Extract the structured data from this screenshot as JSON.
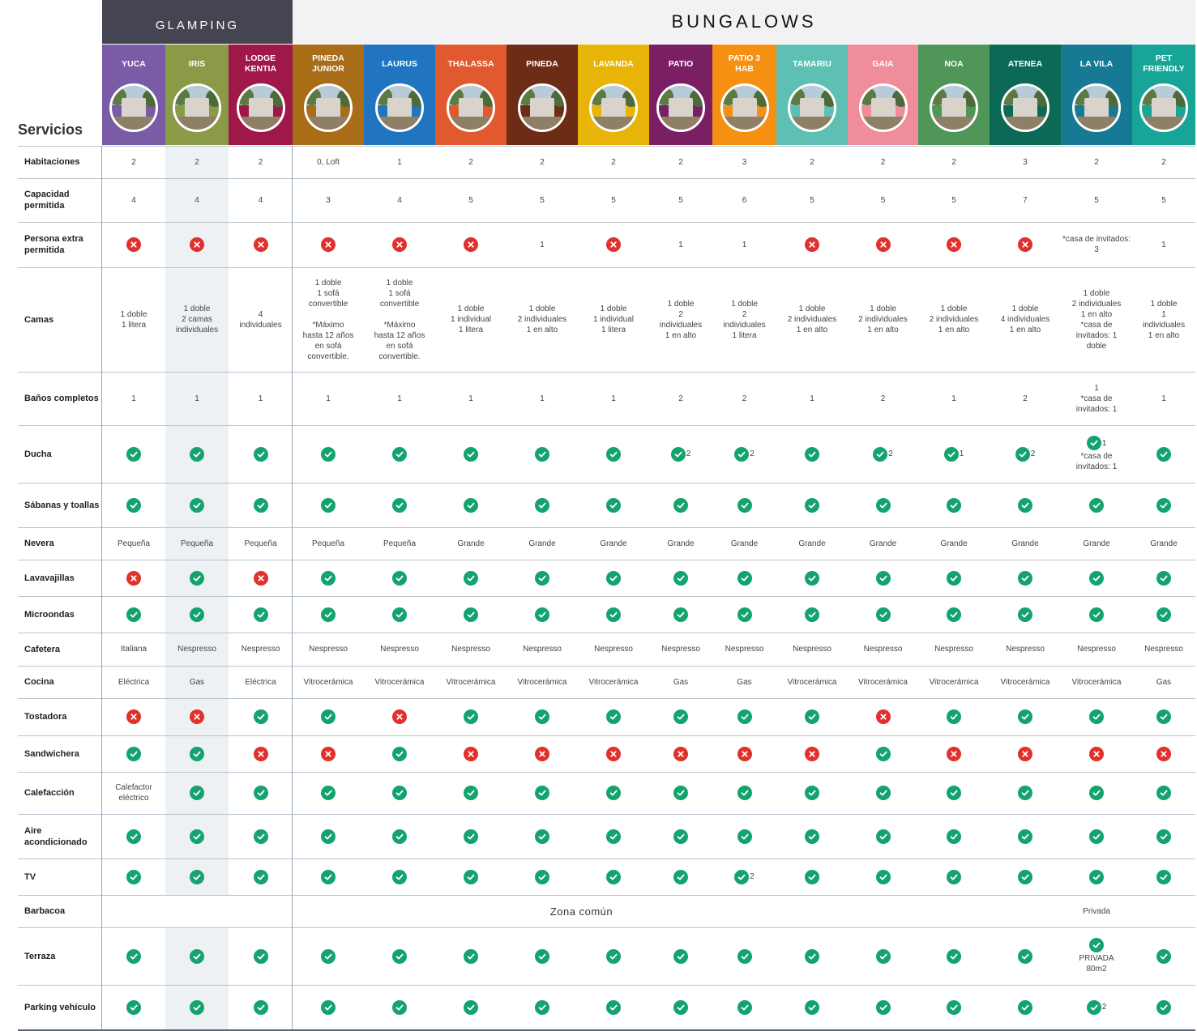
{
  "groups": {
    "glamping": "GLAMPING",
    "bungalows": "BUNGALOWS"
  },
  "servicios_title": "Servicios",
  "columns": [
    {
      "id": "yuca",
      "name": "YUCA",
      "color": "#7a5ba5"
    },
    {
      "id": "iris",
      "name": "IRIS",
      "color": "#8a9a46"
    },
    {
      "id": "lodge-kentia",
      "name": "LODGE KENTIA",
      "color": "#a0174a"
    },
    {
      "id": "pineda-junior",
      "name": "PINEDA JUNIOR",
      "color": "#a86d16"
    },
    {
      "id": "laurus",
      "name": "LAURUS",
      "color": "#2175c0"
    },
    {
      "id": "thalassa",
      "name": "THALASSA",
      "color": "#e1592e"
    },
    {
      "id": "pineda",
      "name": "PINEDA",
      "color": "#6c2c16"
    },
    {
      "id": "lavanda",
      "name": "LAVANDA",
      "color": "#e8b408"
    },
    {
      "id": "patio",
      "name": "PATIO",
      "color": "#7b1f65"
    },
    {
      "id": "patio-3-hab",
      "name": "PATIO 3 HAB",
      "color": "#f59012"
    },
    {
      "id": "tamariu",
      "name": "TAMARIU",
      "color": "#5ec0b4"
    },
    {
      "id": "gaia",
      "name": "GAIA",
      "color": "#f08d9a"
    },
    {
      "id": "noa",
      "name": "NOA",
      "color": "#4f9658"
    },
    {
      "id": "atenea",
      "name": "ATENEA",
      "color": "#0b6956"
    },
    {
      "id": "la-vila",
      "name": "LA VILA",
      "color": "#177a94"
    },
    {
      "id": "pet-friendly",
      "name": "PET FRIENDLY",
      "color": "#16a596"
    }
  ],
  "rows": [
    {
      "id": "habitaciones",
      "label": "Habitaciones",
      "cells": [
        "2",
        "2",
        "2",
        "0, Loft",
        "1",
        "2",
        "2",
        "2",
        "2",
        "3",
        "2",
        "2",
        "2",
        "3",
        "2",
        "2"
      ]
    },
    {
      "id": "capacidad",
      "label": "Capacidad permitida",
      "cells": [
        "4",
        "4",
        "4",
        "3",
        "4",
        "5",
        "5",
        "5",
        "5",
        "6",
        "5",
        "5",
        "5",
        "7",
        "5",
        "5"
      ]
    },
    {
      "id": "persona-extra",
      "label": "Persona extra permitida",
      "cells": [
        "no",
        "no",
        "no",
        "no",
        "no",
        "no",
        "1",
        "no",
        "1",
        "1",
        "no",
        "no",
        "no",
        "no",
        "*casa de invitados: 3",
        "1"
      ]
    },
    {
      "id": "camas",
      "label": "Camas",
      "cells": [
        "1 doble\n1 litera",
        "1 doble\n2 camas\nindividuales",
        "4\nindividuales",
        "1 doble\n1 sofá\nconvertible\n\n*Máximo\nhasta 12 años\nen sofá\nconvertible.",
        "1 doble\n1 sofá\nconvertible\n\n*Máximo\nhasta 12 años\nen sofá\nconvertible.",
        "1 doble\n1 individual\n1 litera",
        "1 doble\n2 individuales\n1 en alto",
        "1 doble\n1 individual\n1 litera",
        "1 doble\n2\nindividuales\n1 en alto",
        "1 doble\n2\nindividuales\n1 litera",
        "1 doble\n2 individuales\n1 en alto",
        "1 doble\n2 individuales\n1 en alto",
        "1 doble\n2 individuales\n1 en alto",
        "1 doble\n4 individuales\n1 en alto",
        "1 doble\n2 individuales\n1 en alto\n*casa de\ninvitados: 1\ndoble",
        "1 doble\n1\nindividuales\n1 en alto"
      ]
    },
    {
      "id": "banos",
      "label": "Baños completos",
      "cells": [
        "1",
        "1",
        "1",
        "1",
        "1",
        "1",
        "1",
        "1",
        "2",
        "2",
        "1",
        "2",
        "1",
        "2",
        "1\n*casa de\ninvitados: 1",
        "1"
      ]
    },
    {
      "id": "ducha",
      "label": "Ducha",
      "cells": [
        "yes",
        "yes",
        "yes",
        "yes",
        "yes",
        "yes",
        "yes",
        "yes",
        "yes|2",
        "yes|2",
        "yes",
        "yes|2",
        "yes|1",
        "yes|2",
        "yes|1|*casa de\ninvitados: 1",
        "yes"
      ]
    },
    {
      "id": "sabanas",
      "label": "Sábanas y toallas",
      "cells": [
        "yes",
        "yes",
        "yes",
        "yes",
        "yes",
        "yes",
        "yes",
        "yes",
        "yes",
        "yes",
        "yes",
        "yes",
        "yes",
        "yes",
        "yes",
        "yes"
      ]
    },
    {
      "id": "nevera",
      "label": "Nevera",
      "cells": [
        "Pequeña",
        "Pequeña",
        "Pequeña",
        "Pequeña",
        "Pequeña",
        "Grande",
        "Grande",
        "Grande",
        "Grande",
        "Grande",
        "Grande",
        "Grande",
        "Grande",
        "Grande",
        "Grande",
        "Grande"
      ]
    },
    {
      "id": "lavavajillas",
      "label": "Lavavajillas",
      "cells": [
        "no",
        "yes",
        "no",
        "yes",
        "yes",
        "yes",
        "yes",
        "yes",
        "yes",
        "yes",
        "yes",
        "yes",
        "yes",
        "yes",
        "yes",
        "yes"
      ]
    },
    {
      "id": "microondas",
      "label": "Microondas",
      "cells": [
        "yes",
        "yes",
        "yes",
        "yes",
        "yes",
        "yes",
        "yes",
        "yes",
        "yes",
        "yes",
        "yes",
        "yes",
        "yes",
        "yes",
        "yes",
        "yes"
      ]
    },
    {
      "id": "cafetera",
      "label": "Cafetera",
      "cells": [
        "Italiana",
        "Nespresso",
        "Nespresso",
        "Nespresso",
        "Nespresso",
        "Nespresso",
        "Nespresso",
        "Nespresso",
        "Nespresso",
        "Nespresso",
        "Nespresso",
        "Nespresso",
        "Nespresso",
        "Nespresso",
        "Nespresso",
        "Nespresso"
      ]
    },
    {
      "id": "cocina",
      "label": "Cocina",
      "cells": [
        "Eléctrica",
        "Gas",
        "Eléctrica",
        "Vitrocerámica",
        "Vitrocerámica",
        "Vitrocerámica",
        "Vitrocerámica",
        "Vitrocerámica",
        "Gas",
        "Gas",
        "Vitrocerámica",
        "Vitrocerámica",
        "Vitrocerámica",
        "Vitrocerámica",
        "Vitrocerámica",
        "Gas"
      ]
    },
    {
      "id": "tostadora",
      "label": "Tostadora",
      "cells": [
        "no",
        "no",
        "yes",
        "yes",
        "no",
        "yes",
        "yes",
        "yes",
        "yes",
        "yes",
        "yes",
        "no",
        "yes",
        "yes",
        "yes",
        "yes"
      ]
    },
    {
      "id": "sandwichera",
      "label": "Sandwichera",
      "cells": [
        "yes",
        "yes",
        "no",
        "no",
        "yes",
        "no",
        "no",
        "no",
        "no",
        "no",
        "no",
        "yes",
        "no",
        "no",
        "no",
        "no"
      ]
    },
    {
      "id": "calefaccion",
      "label": "Calefacción",
      "cells": [
        "Calefactor\neléctrico",
        "yes",
        "yes",
        "yes",
        "yes",
        "yes",
        "yes",
        "yes",
        "yes",
        "yes",
        "yes",
        "yes",
        "yes",
        "yes",
        "yes",
        "yes"
      ]
    },
    {
      "id": "aire",
      "label": "Aire acondicionado",
      "cells": [
        "yes",
        "yes",
        "yes",
        "yes",
        "yes",
        "yes",
        "yes",
        "yes",
        "yes",
        "yes",
        "yes",
        "yes",
        "yes",
        "yes",
        "yes",
        "yes"
      ]
    },
    {
      "id": "tv",
      "label": "TV",
      "cells": [
        "yes",
        "yes",
        "yes",
        "yes",
        "yes",
        "yes",
        "yes",
        "yes",
        "yes",
        "yes|2",
        "yes",
        "yes",
        "yes",
        "yes",
        "yes",
        "yes"
      ]
    },
    {
      "id": "barbacoa",
      "label": "Barbacoa",
      "common": "Zona común",
      "cells": [
        "",
        "",
        "",
        "",
        "",
        "",
        "",
        "",
        "",
        "",
        "",
        "",
        "",
        "",
        "Privada",
        ""
      ]
    },
    {
      "id": "terraza",
      "label": "Terraza",
      "cells": [
        "yes",
        "yes",
        "yes",
        "yes",
        "yes",
        "yes",
        "yes",
        "yes",
        "yes",
        "yes",
        "yes",
        "yes",
        "yes",
        "yes",
        "yes||PRIVADA\n80m2",
        "yes"
      ]
    },
    {
      "id": "parking",
      "label": "Parking vehículo",
      "cells": [
        "yes",
        "yes",
        "yes",
        "yes",
        "yes",
        "yes",
        "yes",
        "yes",
        "yes",
        "yes",
        "yes",
        "yes",
        "yes",
        "yes",
        "yes|2",
        "yes"
      ]
    }
  ],
  "icons": {
    "check": "check-circle-icon",
    "cross": "cross-circle-icon",
    "photo": "bungalow-photo-icon"
  },
  "colors": {
    "check": "#14a36f",
    "cross": "#e2302c",
    "glamping_header": "#454552",
    "iris_highlight": "#eef1f4"
  }
}
